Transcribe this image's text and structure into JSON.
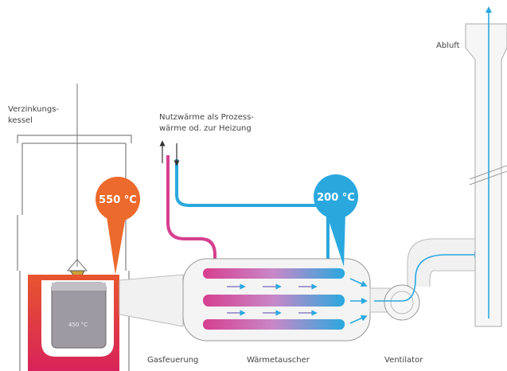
{
  "labels": {
    "kettle": [
      "Verzinkungs-",
      "kessel"
    ],
    "useful_heat": [
      "Nutzwärme als Prozess-",
      "wärme od. zur Heizung"
    ],
    "exhaust": "Abluft",
    "gas_firing": "Gasfeuerung",
    "heat_exchanger": "Wärmetauscher",
    "fan": "Ventilator",
    "bath_temp": "450 °C"
  },
  "badges": {
    "furnace": "550 °C",
    "exchanger": "200 °C"
  }
}
